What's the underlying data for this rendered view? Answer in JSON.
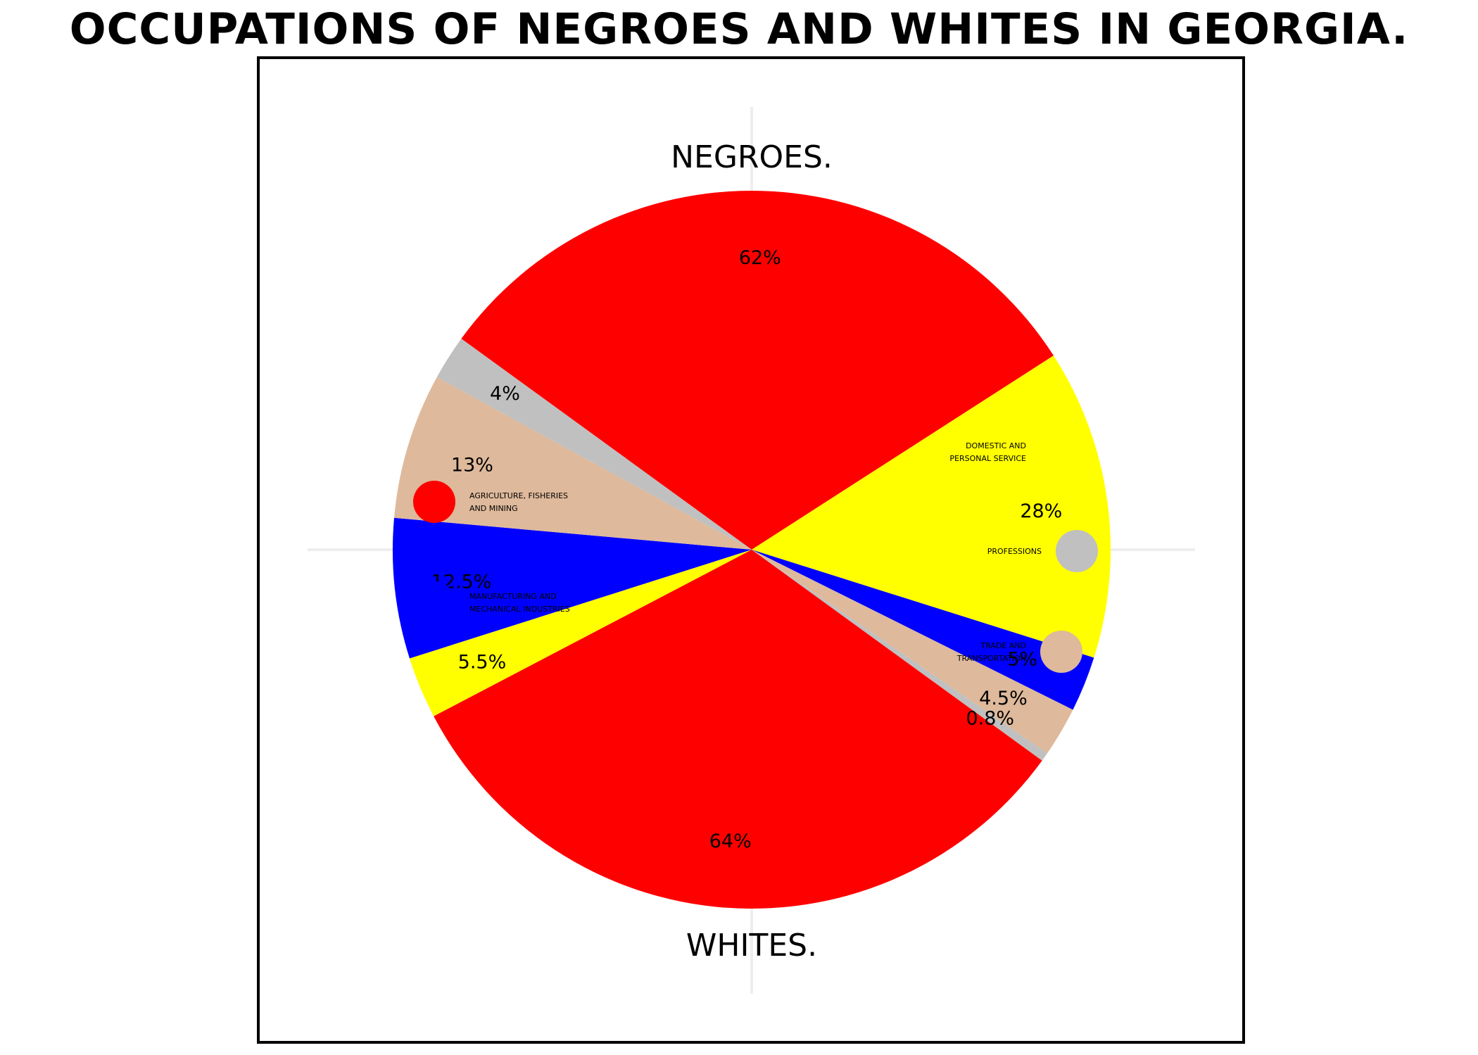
{
  "chart_data": {
    "type": "pie",
    "title": "OCCUPATIONS OF NEGROES AND WHITES IN GEORGIA.",
    "categories": [
      "AGRICULTURE, FISHERIES AND MINING",
      "DOMESTIC AND PERSONAL SERVICE",
      "MANUFACTURING AND MECHANICAL INDUSTRIES",
      "TRADE AND TRANSPORTATION",
      "PROFESSIONS"
    ],
    "colors": [
      "#ff0000",
      "#ffff00",
      "#0000ff",
      "#deb99b",
      "#c0c0c0"
    ],
    "series": [
      {
        "name": "NEGROES.",
        "values": [
          62,
          28,
          5,
          4.5,
          0.8
        ],
        "labels": [
          "62%",
          "28%",
          "5%",
          "4.5%",
          "0.8%"
        ]
      },
      {
        "name": "WHITES.",
        "values": [
          64,
          5.5,
          12.5,
          13,
          4
        ],
        "labels": [
          "64%",
          "5.5%",
          "12.5%",
          "13%",
          "4%"
        ]
      }
    ],
    "legend": [
      {
        "lines": [
          "AGRICULTURE, FISHERIES",
          " AND MINING"
        ],
        "color": "#ff0000",
        "side": "left"
      },
      {
        "lines": [
          "MANUFACTURING AND",
          " MECHANICAL INDUSTRIES"
        ],
        "color": "#0000ff",
        "side": "left"
      },
      {
        "lines": [
          "DOMESTIC AND",
          "PERSONAL SERVICE"
        ],
        "color": "#ffff00",
        "side": "right"
      },
      {
        "lines": [
          "PROFESSIONS"
        ],
        "color": "#c0c0c0",
        "side": "right"
      },
      {
        "lines": [
          "TRADE AND",
          "TRANSPORTATION"
        ],
        "color": "#deb99b",
        "side": "right"
      }
    ]
  }
}
